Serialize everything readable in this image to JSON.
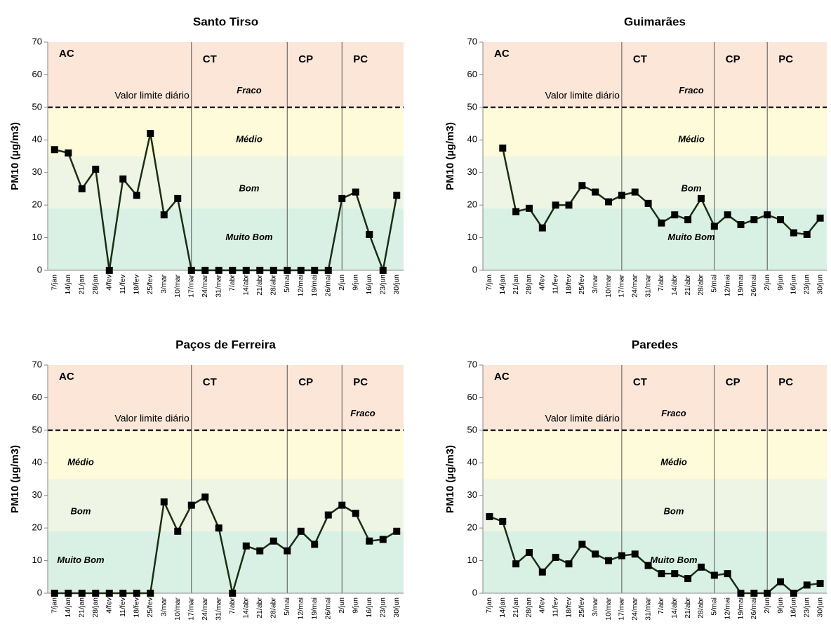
{
  "chart_data": [
    {
      "type": "line",
      "title": "Santo Tirso",
      "y_label": "PM10 (µg/m3)",
      "categories": [
        "7/jan",
        "14/jan",
        "21/jan",
        "28/jan",
        "4/fev",
        "11/fev",
        "18/fev",
        "25/fev",
        "3/mar",
        "10/mar",
        "17/mar",
        "24/mar",
        "31/mar",
        "7/abr",
        "14/abr",
        "21/abr",
        "28/abr",
        "5/mai",
        "12/mai",
        "19/mai",
        "26/mai",
        "2/jun",
        "9/jun",
        "16/jun",
        "23/jun",
        "30/jun"
      ],
      "series": [
        {
          "name": "PM10",
          "color": "#1a2e12",
          "values": [
            37,
            36,
            25,
            31,
            0,
            28,
            23,
            42,
            17,
            22,
            0,
            0,
            0,
            0,
            0,
            0,
            0,
            0,
            0,
            0,
            0,
            22,
            24,
            11,
            0,
            23
          ]
        }
      ],
      "ylim": [
        0,
        70
      ],
      "yticks": [
        0,
        10,
        20,
        30,
        40,
        50,
        60,
        70
      ],
      "bands": [
        {
          "label": "Muito Bom",
          "from": 0,
          "to": 19,
          "color": "#d9f1e4"
        },
        {
          "label": "Bom",
          "from": 19,
          "to": 35,
          "color": "#eef5e4"
        },
        {
          "label": "Médio",
          "from": 35,
          "to": 50,
          "color": "#fdfbd9"
        },
        {
          "label": "Fraco",
          "from": 50,
          "to": 70,
          "color": "#fbe6d8"
        }
      ],
      "limit": {
        "label": "Valor limite diário",
        "value": 50
      },
      "periods": [
        {
          "label": "AC",
          "start": "7/jan"
        },
        {
          "label": "CT",
          "start": "17/mar"
        },
        {
          "label": "CP",
          "start": "5/mai"
        },
        {
          "label": "PC",
          "start": "2/jun"
        }
      ]
    },
    {
      "type": "line",
      "title": "Guimarães",
      "y_label": "PM10 (µg/m3)",
      "categories": [
        "7/jan",
        "14/jan",
        "21/jan",
        "28/jan",
        "4/fev",
        "11/fev",
        "18/fev",
        "25/fev",
        "3/mar",
        "10/mar",
        "17/mar",
        "24/mar",
        "31/mar",
        "7/abr",
        "14/abr",
        "21/abr",
        "28/abr",
        "5/mai",
        "12/mai",
        "19/mai",
        "26/mai",
        "2/jun",
        "9/jun",
        "16/jun",
        "23/jun",
        "30/jun"
      ],
      "series": [
        {
          "name": "PM10",
          "color": "#1a2e12",
          "values": [
            null,
            37.5,
            18,
            19,
            13,
            20,
            20,
            26,
            24,
            21,
            23,
            24,
            20.5,
            14.5,
            17,
            15.5,
            22,
            13.5,
            17,
            14,
            15.5,
            17,
            15.5,
            11.5,
            11,
            16
          ]
        }
      ],
      "ylim": [
        0,
        70
      ],
      "yticks": [
        0,
        10,
        20,
        30,
        40,
        50,
        60,
        70
      ],
      "bands": [
        {
          "label": "Muito Bom",
          "from": 0,
          "to": 19,
          "color": "#d9f1e4"
        },
        {
          "label": "Bom",
          "from": 19,
          "to": 35,
          "color": "#eef5e4"
        },
        {
          "label": "Médio",
          "from": 35,
          "to": 50,
          "color": "#fdfbd9"
        },
        {
          "label": "Fraco",
          "from": 50,
          "to": 70,
          "color": "#fbe6d8"
        }
      ],
      "limit": {
        "label": "Valor limite diário",
        "value": 50
      },
      "periods": [
        {
          "label": "AC",
          "start": "7/jan"
        },
        {
          "label": "CT",
          "start": "17/mar"
        },
        {
          "label": "CP",
          "start": "5/mai"
        },
        {
          "label": "PC",
          "start": "2/jun"
        }
      ]
    },
    {
      "type": "line",
      "title": "Paços de Ferreira",
      "y_label": "PM10 (µg/m3)",
      "categories": [
        "7/jan",
        "14/jan",
        "21/jan",
        "28/jan",
        "4/fev",
        "11/fev",
        "18/fev",
        "25/fev",
        "3/mar",
        "10/mar",
        "17/mar",
        "24/mar",
        "31/mar",
        "7/abr",
        "14/abr",
        "21/abr",
        "28/abr",
        "5/mai",
        "12/mai",
        "19/mai",
        "26/mai",
        "2/jun",
        "9/jun",
        "16/jun",
        "23/jun",
        "30/jun"
      ],
      "series": [
        {
          "name": "PM10",
          "color": "#1a2e12",
          "values": [
            0,
            0,
            0,
            0,
            0,
            0,
            0,
            0,
            28,
            19,
            27,
            29.5,
            20,
            0,
            14.5,
            13,
            16,
            13,
            19,
            15,
            24,
            27,
            24.5,
            16,
            16.5,
            19
          ]
        }
      ],
      "ylim": [
        0,
        70
      ],
      "yticks": [
        0,
        10,
        20,
        30,
        40,
        50,
        60,
        70
      ],
      "bands": [
        {
          "label": "Muito Bom",
          "from": 0,
          "to": 19,
          "color": "#d9f1e4"
        },
        {
          "label": "Bom",
          "from": 19,
          "to": 35,
          "color": "#eef5e4"
        },
        {
          "label": "Médio",
          "from": 35,
          "to": 50,
          "color": "#fdfbd9"
        },
        {
          "label": "Fraco",
          "from": 50,
          "to": 70,
          "color": "#fbe6d8"
        }
      ],
      "limit": {
        "label": "Valor limite diário",
        "value": 50
      },
      "periods": [
        {
          "label": "AC",
          "start": "7/jan"
        },
        {
          "label": "CT",
          "start": "17/mar"
        },
        {
          "label": "CP",
          "start": "5/mai"
        },
        {
          "label": "PC",
          "start": "2/jun"
        }
      ]
    },
    {
      "type": "line",
      "title": "Paredes",
      "y_label": "PM10 (µg/m3)",
      "categories": [
        "7/jan",
        "14/jan",
        "21/jan",
        "28/jan",
        "4/fev",
        "11/fev",
        "18/fev",
        "25/fev",
        "3/mar",
        "10/mar",
        "17/mar",
        "24/mar",
        "31/mar",
        "7/abr",
        "14/abr",
        "21/abr",
        "28/abr",
        "5/mai",
        "12/mai",
        "19/mai",
        "26/mai",
        "2/jun",
        "9/jun",
        "16/jun",
        "23/jun",
        "30/jun"
      ],
      "series": [
        {
          "name": "PM10",
          "color": "#1a2e12",
          "values": [
            23.5,
            22,
            9,
            12.5,
            6.5,
            11,
            9,
            15,
            12,
            10,
            11.5,
            12,
            8.5,
            6,
            6,
            4.5,
            8,
            5.5,
            6,
            0,
            0,
            0,
            3.5,
            0,
            2.5,
            3
          ]
        }
      ],
      "ylim": [
        0,
        70
      ],
      "yticks": [
        0,
        10,
        20,
        30,
        40,
        50,
        60,
        70
      ],
      "bands": [
        {
          "label": "Muito Bom",
          "from": 0,
          "to": 19,
          "color": "#d9f1e4"
        },
        {
          "label": "Bom",
          "from": 19,
          "to": 35,
          "color": "#eef5e4"
        },
        {
          "label": "Médio",
          "from": 35,
          "to": 50,
          "color": "#fdfbd9"
        },
        {
          "label": "Fraco",
          "from": 50,
          "to": 70,
          "color": "#fbe6d8"
        }
      ],
      "limit": {
        "label": "Valor limite diário",
        "value": 50
      },
      "periods": [
        {
          "label": "AC",
          "start": "7/jan"
        },
        {
          "label": "CT",
          "start": "17/mar"
        },
        {
          "label": "CP",
          "start": "5/mai"
        },
        {
          "label": "PC",
          "start": "2/jun"
        }
      ]
    }
  ]
}
